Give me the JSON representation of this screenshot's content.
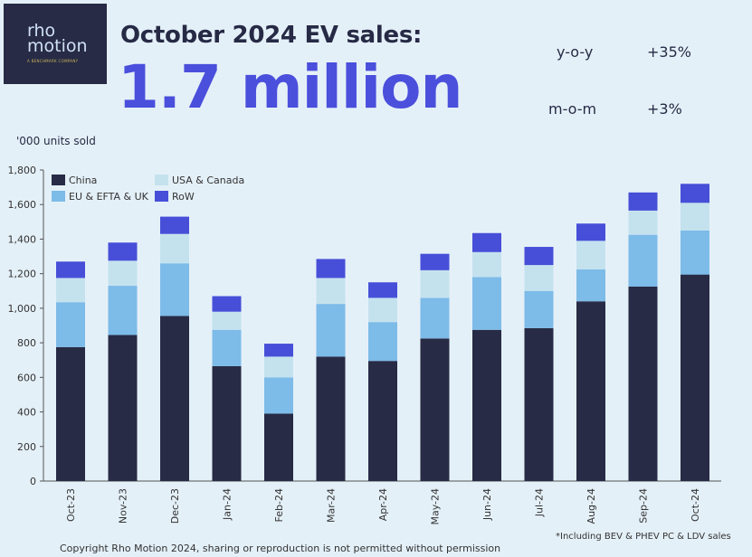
{
  "logo": {
    "line1": "rho",
    "line2": "motion",
    "tagline": "A BENCHMARK COMPANY"
  },
  "header": {
    "title": "October 2024 EV sales:",
    "headline": "1.7 million",
    "kpis": [
      {
        "label": "y-o-y",
        "value": "+35%"
      },
      {
        "label": "m-o-m",
        "value": "+3%"
      }
    ]
  },
  "footer": {
    "footnote": "*Including BEV & PHEV PC & LDV sales",
    "copyright": "Copyright Rho Motion 2024, sharing or reproduction is not permitted without permission"
  },
  "chart_data": {
    "type": "bar",
    "stacked": true,
    "ylabel": "'000 units sold",
    "ylim": [
      0,
      1800
    ],
    "yticks": [
      "0",
      "200",
      "400",
      "600",
      "800",
      "1,000",
      "1,200",
      "1,400",
      "1,600",
      "1,800"
    ],
    "grid": false,
    "legend_position": "top-left",
    "categories": [
      "Oct-23",
      "Nov-23",
      "Dec-23",
      "Jan-24",
      "Feb-24",
      "Mar-24",
      "Apr-24",
      "May-24",
      "Jun-24",
      "Jul-24",
      "Aug-24",
      "Sep-24",
      "Oct-24"
    ],
    "series": [
      {
        "name": "China",
        "color": "#272b45",
        "values": [
          775,
          845,
          955,
          665,
          390,
          720,
          695,
          825,
          875,
          885,
          1040,
          1125,
          1195
        ]
      },
      {
        "name": "EU & EFTA & UK",
        "color": "#7dbbe8",
        "values": [
          260,
          285,
          305,
          210,
          210,
          305,
          225,
          235,
          305,
          215,
          185,
          300,
          255
        ]
      },
      {
        "name": "USA & Canada",
        "color": "#c4e2ee",
        "values": [
          140,
          145,
          170,
          105,
          120,
          150,
          140,
          160,
          145,
          150,
          165,
          140,
          160
        ]
      },
      {
        "name": "RoW",
        "color": "#474fd8",
        "values": [
          95,
          105,
          100,
          90,
          75,
          110,
          90,
          95,
          110,
          105,
          100,
          105,
          110
        ]
      }
    ]
  }
}
